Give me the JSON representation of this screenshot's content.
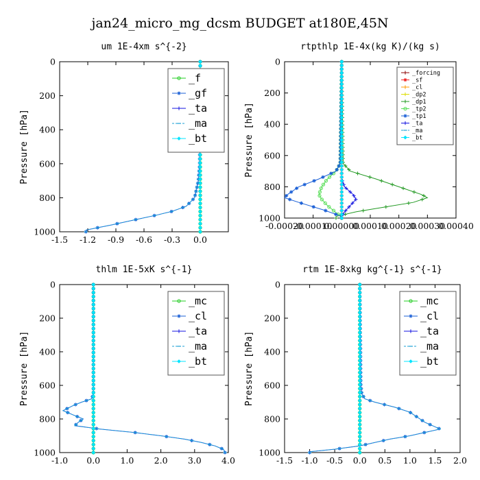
{
  "figure": {
    "title": "jan24_micro_mg_dcsm  BUDGET at180E,45N"
  },
  "chart_data": [
    {
      "type": "line",
      "title": "um  1E-4xm s^{-2}",
      "ylabel": "Pressure [hPa]",
      "xlim": [
        -1.5,
        0.3
      ],
      "ylim": [
        1000,
        0
      ],
      "xticks": [
        "-1.5",
        "-1.2",
        "-0.9",
        "-0.6",
        "-0.3",
        "0.0"
      ],
      "xtick_values": [
        -1.5,
        -1.2,
        -0.9,
        -0.6,
        -0.3,
        0.0
      ],
      "yticks": [
        "0",
        "200",
        "400",
        "600",
        "800",
        "1000"
      ],
      "ytick_values": [
        0,
        200,
        400,
        600,
        800,
        1000
      ],
      "legend_position": "top-right",
      "legend_size": "large",
      "series": [
        {
          "name": "_f",
          "color": "#22cc22",
          "marker": "circle",
          "p": [
            0,
            1000
          ],
          "v": [
            0.0,
            0.0
          ]
        },
        {
          "name": "_gf",
          "color": "#1a5fd6",
          "marker": "star",
          "p": [
            0,
            600,
            700,
            800,
            850,
            880,
            900,
            930,
            960,
            990
          ],
          "v": [
            0.0,
            -0.005,
            -0.02,
            -0.06,
            -0.15,
            -0.3,
            -0.45,
            -0.7,
            -0.95,
            -1.22
          ]
        },
        {
          "name": "_ta",
          "color": "#1010e0",
          "marker": "plus",
          "p": [
            0,
            1000
          ],
          "v": [
            0.0,
            0.0
          ]
        },
        {
          "name": "_ma",
          "color": "#1a9fd6",
          "marker": "dash",
          "p": [
            0,
            600,
            700,
            800,
            850,
            880,
            900,
            930,
            960,
            990
          ],
          "v": [
            0.0,
            -0.005,
            -0.02,
            -0.06,
            -0.15,
            -0.3,
            -0.45,
            -0.7,
            -0.95,
            -1.22
          ]
        },
        {
          "name": "_bt",
          "color": "#00e5ff",
          "marker": "diamond",
          "p": [
            0,
            1000
          ],
          "v": [
            0.0,
            0.0
          ]
        }
      ]
    },
    {
      "type": "line",
      "title": "rtpthlp  1E-4x(kg K)/(kg s)",
      "ylabel": "Pressure [hPa]",
      "xlim": [
        -0.0002,
        0.0004
      ],
      "ylim": [
        1000,
        0
      ],
      "xticks": [
        "-0.00020",
        "-0.00010",
        "0.00000",
        "0.00010",
        "0.00020",
        "0.00030",
        "0.00040"
      ],
      "xtick_values": [
        -0.0002,
        -0.0001,
        0.0,
        0.0001,
        0.0002,
        0.0003,
        0.0004
      ],
      "yticks": [
        "0",
        "200",
        "400",
        "600",
        "800",
        "1000"
      ],
      "ytick_values": [
        0,
        200,
        400,
        600,
        800,
        1000
      ],
      "legend_position": "top-right",
      "legend_size": "small",
      "series": [
        {
          "name": "_forcing",
          "color": "#8b0000",
          "marker": "plus",
          "p": [
            0,
            1000
          ],
          "v": [
            0.0,
            0.0
          ]
        },
        {
          "name": "_sf",
          "color": "#ee2222",
          "marker": "star",
          "p": [
            0,
            1000
          ],
          "v": [
            0.0,
            0.0
          ]
        },
        {
          "name": "_cl",
          "color": "#ff9900",
          "marker": "plus",
          "p": [
            0,
            1000
          ],
          "v": [
            0.0,
            0.0
          ]
        },
        {
          "name": "_dp2",
          "color": "#dddd00",
          "marker": "plus",
          "p": [
            0,
            1000
          ],
          "v": [
            0.0,
            0.0
          ]
        },
        {
          "name": "_dp1",
          "color": "#229922",
          "marker": "plus",
          "p": [
            0,
            650,
            700,
            750,
            800,
            850,
            870,
            900,
            930,
            960,
            990
          ],
          "v": [
            0.0,
            5e-06,
            3e-05,
            0.00012,
            0.0002,
            0.00028,
            0.0003,
            0.00025,
            0.00015,
            5e-05,
            -2e-05
          ]
        },
        {
          "name": "_tp2",
          "color": "#55dd55",
          "marker": "circle",
          "p": [
            0,
            650,
            700,
            750,
            800,
            850,
            880,
            920,
            950,
            980,
            1000
          ],
          "v": [
            0.0,
            -5e-06,
            -2e-05,
            -5e-05,
            -7e-05,
            -8e-05,
            -7e-05,
            -5e-05,
            -3e-05,
            -1e-05,
            0.0
          ]
        },
        {
          "name": "_tp1",
          "color": "#1a5fd6",
          "marker": "star",
          "p": [
            0,
            650,
            700,
            750,
            800,
            850,
            870,
            900,
            950,
            990
          ],
          "v": [
            0.0,
            -5e-06,
            -2e-05,
            -8e-05,
            -0.00015,
            -0.00019,
            -0.0002,
            -0.00015,
            -6e-05,
            0.0
          ]
        },
        {
          "name": "_ta",
          "color": "#1010e0",
          "marker": "plus",
          "p": [
            0,
            750,
            800,
            850,
            880,
            920,
            960,
            990
          ],
          "v": [
            0.0,
            0.0,
            1e-05,
            4e-05,
            5e-05,
            3e-05,
            1e-05,
            0.0
          ]
        },
        {
          "name": "_ma",
          "color": "#1a9fd6",
          "marker": "dash",
          "p": [
            0,
            1000
          ],
          "v": [
            0.0,
            0.0
          ]
        },
        {
          "name": "_bt",
          "color": "#00e5ff",
          "marker": "diamond",
          "p": [
            0,
            1000
          ],
          "v": [
            0.0,
            0.0
          ]
        }
      ]
    },
    {
      "type": "line",
      "title": "thlm  1E-5xK s^{-1}",
      "ylabel": "Pressure [hPa]",
      "xlim": [
        -1.0,
        4.0
      ],
      "ylim": [
        1000,
        0
      ],
      "xticks": [
        "-1.0",
        "0.0",
        "1.0",
        "2.0",
        "3.0",
        "4.0"
      ],
      "xtick_values": [
        -1.0,
        0.0,
        1.0,
        2.0,
        3.0,
        4.0
      ],
      "yticks": [
        "0",
        "200",
        "400",
        "600",
        "800",
        "1000"
      ],
      "ytick_values": [
        0,
        200,
        400,
        600,
        800,
        1000
      ],
      "legend_position": "top-right",
      "legend_size": "large",
      "series": [
        {
          "name": "_mc",
          "color": "#22cc22",
          "marker": "circle",
          "p": [
            0,
            1000
          ],
          "v": [
            0.0,
            0.0
          ]
        },
        {
          "name": "_cl",
          "color": "#1a5fd6",
          "marker": "star",
          "p": [
            0,
            650,
            680,
            700,
            720,
            750,
            780,
            800,
            820,
            840,
            860,
            880,
            900,
            920,
            940,
            960,
            980,
            995
          ],
          "v": [
            0.0,
            0.0,
            -0.05,
            -0.35,
            -0.6,
            -0.9,
            -0.55,
            -0.3,
            -0.45,
            -0.55,
            0.2,
            1.2,
            2.0,
            2.7,
            3.2,
            3.6,
            3.85,
            3.9
          ]
        },
        {
          "name": "_ta",
          "color": "#1010e0",
          "marker": "plus",
          "p": [
            0,
            1000
          ],
          "v": [
            0.0,
            0.0
          ]
        },
        {
          "name": "_ma",
          "color": "#1a9fd6",
          "marker": "dash",
          "p": [
            0,
            650,
            680,
            700,
            720,
            750,
            780,
            800,
            820,
            840,
            860,
            880,
            900,
            920,
            940,
            960,
            980,
            995
          ],
          "v": [
            0.0,
            0.0,
            -0.05,
            -0.35,
            -0.6,
            -0.9,
            -0.55,
            -0.3,
            -0.45,
            -0.55,
            0.2,
            1.2,
            2.0,
            2.7,
            3.2,
            3.6,
            3.85,
            3.9
          ]
        },
        {
          "name": "_bt",
          "color": "#00e5ff",
          "marker": "diamond",
          "p": [
            0,
            1000
          ],
          "v": [
            0.0,
            0.0
          ]
        }
      ]
    },
    {
      "type": "line",
      "title": "rtm  1E-8xkg kg^{-1} s^{-1}",
      "ylabel": "Pressure [hPa]",
      "xlim": [
        -1.5,
        2.0
      ],
      "ylim": [
        1000,
        0
      ],
      "xticks": [
        "-1.5",
        "-1.0",
        "-0.5",
        "0.0",
        "0.5",
        "1.0",
        "1.5",
        "2.0"
      ],
      "xtick_values": [
        -1.5,
        -1.0,
        -0.5,
        0.0,
        0.5,
        1.0,
        1.5,
        2.0
      ],
      "yticks": [
        "0",
        "200",
        "400",
        "600",
        "800",
        "1000"
      ],
      "ytick_values": [
        0,
        200,
        400,
        600,
        800,
        1000
      ],
      "legend_position": "top-right",
      "legend_size": "large",
      "series": [
        {
          "name": "_mc",
          "color": "#22cc22",
          "marker": "circle",
          "p": [
            0,
            1000
          ],
          "v": [
            0.0,
            0.0
          ]
        },
        {
          "name": "_cl",
          "color": "#1a5fd6",
          "marker": "star",
          "p": [
            0,
            600,
            650,
            680,
            700,
            730,
            760,
            800,
            820,
            840,
            860,
            880,
            900,
            920,
            940,
            960,
            980,
            995
          ],
          "v": [
            0.0,
            0.02,
            0.04,
            0.1,
            0.3,
            0.7,
            1.0,
            1.2,
            1.3,
            1.45,
            1.6,
            1.3,
            1.0,
            0.6,
            0.3,
            0.0,
            -0.5,
            -1.0
          ]
        },
        {
          "name": "_ta",
          "color": "#1010e0",
          "marker": "plus",
          "p": [
            0,
            1000
          ],
          "v": [
            0.0,
            0.0
          ]
        },
        {
          "name": "_ma",
          "color": "#1a9fd6",
          "marker": "dash",
          "p": [
            0,
            600,
            650,
            680,
            700,
            730,
            760,
            800,
            820,
            840,
            860,
            880,
            900,
            920,
            940,
            960,
            980,
            995
          ],
          "v": [
            0.0,
            0.02,
            0.04,
            0.1,
            0.3,
            0.7,
            1.0,
            1.2,
            1.3,
            1.45,
            1.6,
            1.3,
            1.0,
            0.6,
            0.3,
            0.0,
            -0.5,
            -1.0
          ]
        },
        {
          "name": "_bt",
          "color": "#00e5ff",
          "marker": "diamond",
          "p": [
            0,
            1000
          ],
          "v": [
            0.0,
            0.0
          ]
        }
      ]
    }
  ]
}
